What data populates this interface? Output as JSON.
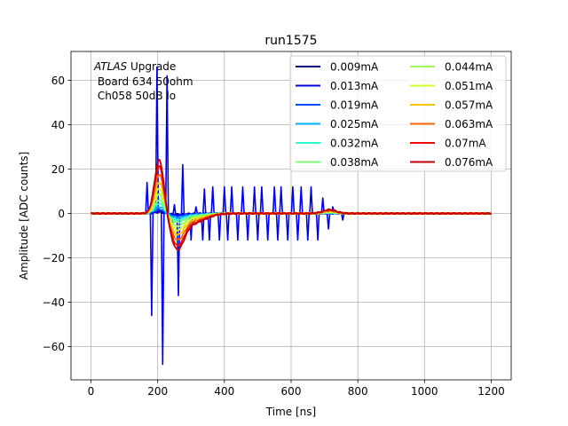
{
  "chart_data": {
    "type": "line",
    "title": "run1575",
    "xlabel": "Time [ns]",
    "ylabel": "Amplitude [ADC counts]",
    "xlim": [
      -60,
      1260
    ],
    "ylim": [
      -75,
      73
    ],
    "xticks": [
      0,
      200,
      400,
      600,
      800,
      1000,
      1200
    ],
    "yticks": [
      -60,
      -40,
      -20,
      0,
      20,
      40,
      60
    ],
    "ytick_labels": [
      "−60",
      "−40",
      "−20",
      "0",
      "20",
      "40",
      "60"
    ],
    "grid": true,
    "legend_position": "top-right",
    "legend_columns": 2,
    "annotation": {
      "line1_italic": "ATLAS",
      "line1_rest": " Upgrade",
      "line2": " Board 634 50ohm",
      "line3": " Ch058 50dB lo"
    },
    "series": [
      {
        "name": "0.009mA",
        "color": "#00007f",
        "amp": 0.3
      },
      {
        "name": "0.013mA",
        "color": "#0000f1",
        "amp": 0.6
      },
      {
        "name": "0.019mA",
        "color": "#004cff",
        "amp": 1.0
      },
      {
        "name": "0.025mA",
        "color": "#00b0ff",
        "amp": 1.6
      },
      {
        "name": "0.032mA",
        "color": "#29ffce",
        "amp": 2.4
      },
      {
        "name": "0.038mA",
        "color": "#7dff7a",
        "amp": 3.2
      },
      {
        "name": "0.044mA",
        "color": "#9dff5a",
        "amp": 4.6
      },
      {
        "name": "0.051mA",
        "color": "#ceff29",
        "amp": 6.0
      },
      {
        "name": "0.057mA",
        "color": "#ffc400",
        "amp": 7.6
      },
      {
        "name": "0.063mA",
        "color": "#ff6800",
        "amp": 9.5
      },
      {
        "name": "0.07mA",
        "color": "#f10800",
        "amp": 11.5
      },
      {
        "name": "0.076mA",
        "color": "#c00000",
        "amp": 13.0
      }
    ],
    "noise_spikes": [
      {
        "t": 168,
        "v": 14
      },
      {
        "t": 182,
        "v": -46
      },
      {
        "t": 198,
        "v": 66
      },
      {
        "t": 215,
        "v": -68
      },
      {
        "t": 228,
        "v": 62
      },
      {
        "t": 244,
        "v": -5
      },
      {
        "t": 250,
        "v": 4
      },
      {
        "t": 262,
        "v": -37
      },
      {
        "t": 275,
        "v": 22
      },
      {
        "t": 300,
        "v": -12
      },
      {
        "t": 315,
        "v": 3
      },
      {
        "t": 335,
        "v": -12
      },
      {
        "t": 340,
        "v": 11
      },
      {
        "t": 355,
        "v": -12
      },
      {
        "t": 365,
        "v": 12
      },
      {
        "t": 385,
        "v": -12
      },
      {
        "t": 400,
        "v": 12
      },
      {
        "t": 410,
        "v": -12
      },
      {
        "t": 422,
        "v": 12
      },
      {
        "t": 440,
        "v": -12
      },
      {
        "t": 455,
        "v": 12
      },
      {
        "t": 470,
        "v": -12
      },
      {
        "t": 490,
        "v": 12
      },
      {
        "t": 500,
        "v": -12
      },
      {
        "t": 512,
        "v": 12
      },
      {
        "t": 530,
        "v": -12
      },
      {
        "t": 550,
        "v": 12
      },
      {
        "t": 560,
        "v": -12
      },
      {
        "t": 570,
        "v": 12
      },
      {
        "t": 590,
        "v": -12
      },
      {
        "t": 605,
        "v": 12
      },
      {
        "t": 620,
        "v": -12
      },
      {
        "t": 630,
        "v": 12
      },
      {
        "t": 650,
        "v": -12
      },
      {
        "t": 660,
        "v": 12
      },
      {
        "t": 680,
        "v": -12
      },
      {
        "t": 695,
        "v": 7
      },
      {
        "t": 712,
        "v": -7
      },
      {
        "t": 725,
        "v": 3
      },
      {
        "t": 755,
        "v": -3
      }
    ]
  }
}
